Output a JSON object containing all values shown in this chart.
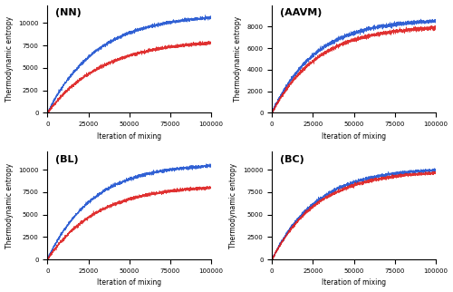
{
  "subplots": [
    {
      "label": "(NN)",
      "blue_max": 11000,
      "red_max": 8200,
      "blue_k": 3.3e-05,
      "red_k": 3e-05,
      "ylim": [
        0,
        12000
      ],
      "yticks": [
        0,
        2500,
        5000,
        7500,
        10000
      ]
    },
    {
      "label": "(AAVM)",
      "blue_max": 8700,
      "red_max": 8100,
      "blue_k": 3.8e-05,
      "red_k": 3.6e-05,
      "ylim": [
        0,
        10000
      ],
      "yticks": [
        0,
        2000,
        4000,
        6000,
        8000
      ]
    },
    {
      "label": "(BL)",
      "blue_max": 10700,
      "red_max": 8300,
      "blue_k": 3.6e-05,
      "red_k": 3.3e-05,
      "ylim": [
        0,
        12000
      ],
      "yticks": [
        0,
        2500,
        5000,
        7500,
        10000
      ]
    },
    {
      "label": "(BC)",
      "blue_max": 10200,
      "red_max": 9900,
      "blue_k": 3.7e-05,
      "red_k": 3.6e-05,
      "ylim": [
        0,
        12000
      ],
      "yticks": [
        0,
        2500,
        5000,
        7500,
        10000
      ]
    }
  ],
  "blue_color": "#1a50d0",
  "red_color": "#dd1a1a",
  "xlabel": "Iteration of mixing",
  "ylabel": "Thermodynamic entropy",
  "xmax": 100000,
  "xticks": [
    0,
    25000,
    50000,
    75000,
    100000
  ],
  "noise_std": 90,
  "n_points": 3000
}
